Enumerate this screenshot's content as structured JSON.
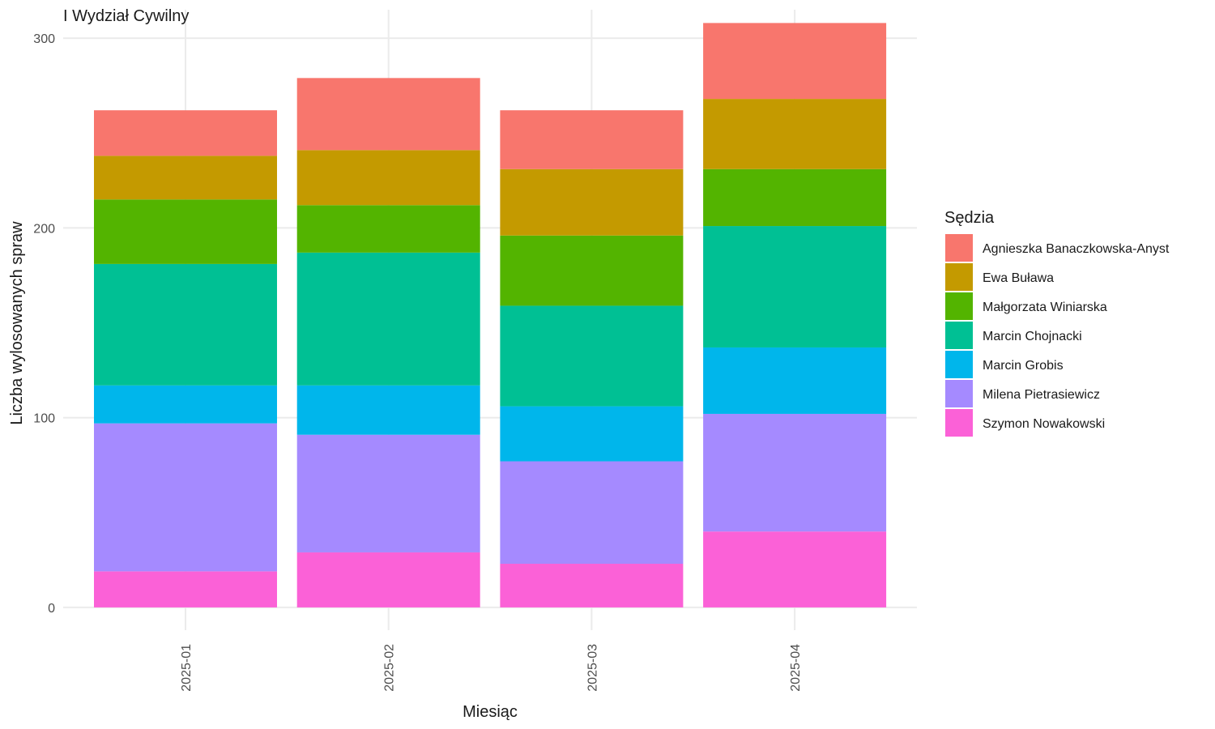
{
  "chart_data": {
    "type": "bar",
    "stacked": true,
    "title": "I Wydział Cywilny",
    "xlabel": "Miesiąc",
    "ylabel": "Liczba wylosowanych spraw",
    "ylim": [
      -12,
      315
    ],
    "yticks": [
      0,
      100,
      200,
      300
    ],
    "categories": [
      "2025-01",
      "2025-02",
      "2025-03",
      "2025-04"
    ],
    "legend": {
      "title": "Sędzia",
      "position": "right"
    },
    "grid": true,
    "series": [
      {
        "name": "Agnieszka Banaczkowska-Anyst",
        "color": "#F8766D",
        "values": [
          24,
          38,
          31,
          40
        ]
      },
      {
        "name": "Ewa Buława",
        "color": "#C49A00",
        "values": [
          23,
          29,
          35,
          37
        ]
      },
      {
        "name": "Małgorzata Winiarska",
        "color": "#53B400",
        "values": [
          34,
          25,
          37,
          30
        ]
      },
      {
        "name": "Marcin Chojnacki",
        "color": "#00C094",
        "values": [
          64,
          70,
          53,
          64
        ]
      },
      {
        "name": "Marcin Grobis",
        "color": "#00B6EB",
        "values": [
          20,
          26,
          29,
          35
        ]
      },
      {
        "name": "Milena Pietrasiewicz",
        "color": "#A58AFF",
        "values": [
          78,
          62,
          54,
          62
        ]
      },
      {
        "name": "Szymon Nowakowski",
        "color": "#FB61D7",
        "values": [
          19,
          29,
          23,
          40
        ]
      }
    ]
  }
}
